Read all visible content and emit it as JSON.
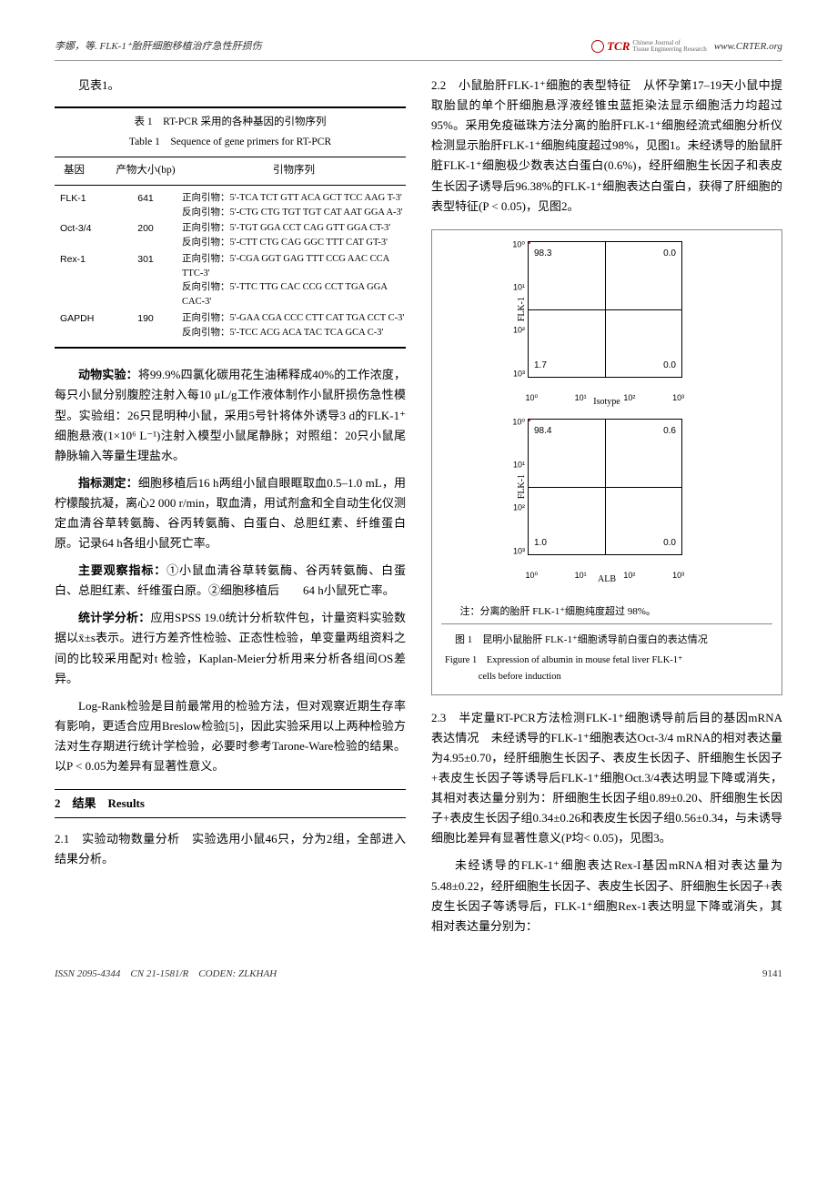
{
  "header": {
    "left": "李娜，等. FLK-1⁺胎肝细胞移植治疗急性肝损伤",
    "logo_text": "TCR",
    "logo_side1": "Chinese Journal of",
    "logo_side2": "Tissue Engineering Research",
    "url": "www.CRTER.org"
  },
  "col_left": {
    "p0": "见表1。",
    "table": {
      "title_cn": "表 1　RT-PCR 采用的各种基因的引物序列",
      "title_en": "Table 1　Sequence of gene primers for RT-PCR",
      "headers": {
        "gene": "基因",
        "size": "产物大小(bp)",
        "primer": "引物序列"
      },
      "rows": [
        {
          "gene": "FLK-1",
          "size": "641",
          "fwd_label": "正向引物：",
          "fwd": "5'-TCA TCT GTT ACA GCT TCC AAG T-3'",
          "rev_label": "反向引物：",
          "rev": "5'-CTG CTG TGT TGT CAT AAT GGA A-3'"
        },
        {
          "gene": "Oct-3/4",
          "size": "200",
          "fwd_label": "正向引物：",
          "fwd": "5'-TGT GGA CCT CAG GTT GGA CT-3'",
          "rev_label": "反向引物：",
          "rev": "5'-CTT CTG CAG GGC TTT CAT GT-3'"
        },
        {
          "gene": "Rex-1",
          "size": "301",
          "fwd_label": "正向引物：",
          "fwd": "5'-CGA GGT GAG TTT CCG AAC CCA TTC-3'",
          "rev_label": "反向引物：",
          "rev": "5'-TTC TTG CAC CCG CCT TGA GGA CAC-3'"
        },
        {
          "gene": "GAPDH",
          "size": "190",
          "fwd_label": "正向引物：",
          "fwd": "5'-GAA CGA CCC CTT CAT TGA CCT C-3'",
          "rev_label": "反向引物：",
          "rev": "5'-TCC ACG ACA TAC TCA GCA C-3'"
        }
      ]
    },
    "p1_label": "动物实验：",
    "p1": "将99.9%四氯化碳用花生油稀释成40%的工作浓度，每只小鼠分别腹腔注射入每10 μL/g工作液体制作小鼠肝损伤急性模型。实验组：26只昆明种小鼠，采用5号针将体外诱导3 d的FLK-1⁺细胞悬液(1×10⁶ L⁻¹)注射入模型小鼠尾静脉；对照组：20只小鼠尾静脉输入等量生理盐水。",
    "p2_label": "指标测定：",
    "p2": "细胞移植后16 h两组小鼠自眼眶取血0.5–1.0 mL，用柠檬酸抗凝，离心2 000 r/min，取血清，用试剂盒和全自动生化仪测定血清谷草转氨酶、谷丙转氨酶、白蛋白、总胆红素、纤维蛋白原。记录64 h各组小鼠死亡率。",
    "p3_label": "主要观察指标：",
    "p3": "①小鼠血清谷草转氨酶、谷丙转氨酶、白蛋白、总胆红素、纤维蛋白原。②细胞移植后　　64 h小鼠死亡率。",
    "p4_label": "统计学分析：",
    "p4": "应用SPSS 19.0统计分析软件包，计量资料实验数据以x̄±s表示。进行方差齐性检验、正态性检验，单变量两组资料之间的比较采用配对t 检验，Kaplan-Meier分析用来分析各组间OS差异。",
    "p5": "Log-Rank检验是目前最常用的检验方法，但对观察近期生存率有影响，更适合应用Breslow检验[5]，因此实验采用以上两种检验方法对生存期进行统计学检验，必要时参考Tarone-Ware检验的结果。以P < 0.05为差异有显著性意义。",
    "sec2": "2　结果　Results",
    "s21_label": "2.1　实验动物数量分析",
    "s21": "　实验选用小鼠46只，分为2组，全部进入结果分析。"
  },
  "col_right": {
    "s22_label": "2.2　小鼠胎肝FLK-1⁺细胞的表型特征",
    "s22": "　从怀孕第17–19天小鼠中提取胎鼠的单个肝细胞悬浮液经锥虫蓝拒染法显示细胞活力均超过95%。采用免疫磁珠方法分离的胎肝FLK-1⁺细胞经流式细胞分析仪检测显示胎肝FLK-1⁺细胞纯度超过98%，见图1。未经诱导的胎鼠肝脏FLK-1⁺细胞极少数表达白蛋白(0.6%)，经肝细胞生长因子和表皮生长因子诱导后96.38%的FLK-1⁺细胞表达白蛋白，获得了肝细胞的表型特征(P < 0.05)，见图2。",
    "fig1": {
      "y_label": "FLK-1",
      "plot1": {
        "q_tl": "98.3",
        "q_tr": "0.0",
        "q_bl": "1.7",
        "q_br": "0.0",
        "x_label": "Isotype",
        "y_ticks": [
          "10⁰",
          "10¹",
          "10²",
          "10³"
        ],
        "x_ticks": [
          "10⁰",
          "10¹",
          "10²",
          "10³"
        ]
      },
      "plot2": {
        "q_tl": "98.4",
        "q_tr": "0.6",
        "q_bl": "1.0",
        "q_br": "0.0",
        "x_label": "ALB",
        "y_ticks": [
          "10⁰",
          "10¹",
          "10²",
          "10³"
        ],
        "x_ticks": [
          "10⁰",
          "10¹",
          "10²",
          "10³"
        ]
      },
      "note": "注：分离的胎肝 FLK-1⁺细胞纯度超过 98%。",
      "caption_cn": "图 1　昆明小鼠胎肝 FLK-1⁺细胞诱导前白蛋白的表达情况",
      "caption_en_1": "Figure 1　Expression of albumin in mouse fetal liver FLK-1⁺",
      "caption_en_2": "cells before induction"
    },
    "s23_label": "2.3　半定量RT-PCR方法检测FLK-1⁺细胞诱导前后目的基因mRNA表达情况",
    "s23": "　未经诱导的FLK-1⁺细胞表达Oct-3/4 mRNA的相对表达量为4.95±0.70，经肝细胞生长因子、表皮生长因子、肝细胞生长因子+表皮生长因子等诱导后FLK-1⁺细胞Oct.3/4表达明显下降或消失，其相对表达量分别为：肝细胞生长因子组0.89±0.20、肝细胞生长因子+表皮生长因子组0.34±0.26和表皮生长因子组0.56±0.34，与未诱导细胞比差异有显著性意义(P均< 0.05)，见图3。",
    "s23b": "未经诱导的FLK-1⁺细胞表达Rex-I基因mRNA相对表达量为5.48±0.22，经肝细胞生长因子、表皮生长因子、肝细胞生长因子+表皮生长因子等诱导后，FLK-1⁺细胞Rex-1表达明显下降或消失，其相对表达量分别为："
  },
  "footer": {
    "left": "ISSN 2095-4344　CN 21-1581/R　CODEN: ZLKHAH",
    "page": "9141"
  },
  "colors": {
    "text": "#000000",
    "accent": "#b00000",
    "dot": "#d33333",
    "border": "#888888"
  }
}
